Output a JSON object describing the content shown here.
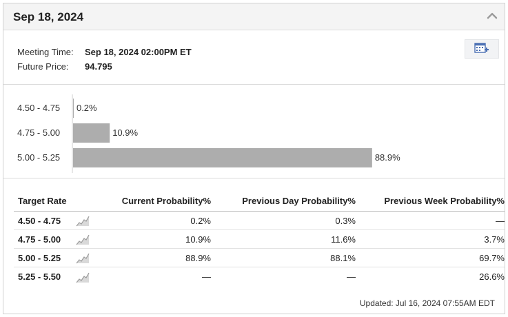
{
  "header": {
    "title": "Sep 18, 2024"
  },
  "meeting": {
    "time_label": "Meeting Time:",
    "time_value": "Sep 18, 2024 02:00PM ET",
    "price_label": "Future Price:",
    "price_value": "94.795"
  },
  "icons": {
    "collapse": "chevron-up-icon",
    "calendar": "add-to-calendar-icon",
    "spark": "sparkline-chart-icon"
  },
  "colors": {
    "bar": "#adadad",
    "accent": "#4a6fb3"
  },
  "chart_data": {
    "type": "bar",
    "orientation": "horizontal",
    "categories": [
      "4.50 - 4.75",
      "4.75 - 5.00",
      "5.00 - 5.25"
    ],
    "values": [
      0.2,
      10.9,
      88.9
    ],
    "value_labels": [
      "0.2%",
      "10.9%",
      "88.9%"
    ],
    "xlim": [
      0,
      100
    ]
  },
  "table": {
    "headers": {
      "rate": "Target Rate",
      "current": "Current Probability%",
      "previous_day": "Previous Day Probability%",
      "previous_week": "Previous Week Probability%"
    },
    "rows": [
      {
        "rate": "4.50 - 4.75",
        "current": "0.2%",
        "previous_day": "0.3%",
        "previous_week": "—"
      },
      {
        "rate": "4.75 - 5.00",
        "current": "10.9%",
        "previous_day": "11.6%",
        "previous_week": "3.7%"
      },
      {
        "rate": "5.00 - 5.25",
        "current": "88.9%",
        "previous_day": "88.1%",
        "previous_week": "69.7%"
      },
      {
        "rate": "5.25 - 5.50",
        "current": "—",
        "previous_day": "—",
        "previous_week": "26.6%"
      }
    ]
  },
  "footer": {
    "updated": "Updated: Jul 16, 2024 07:55AM EDT"
  }
}
